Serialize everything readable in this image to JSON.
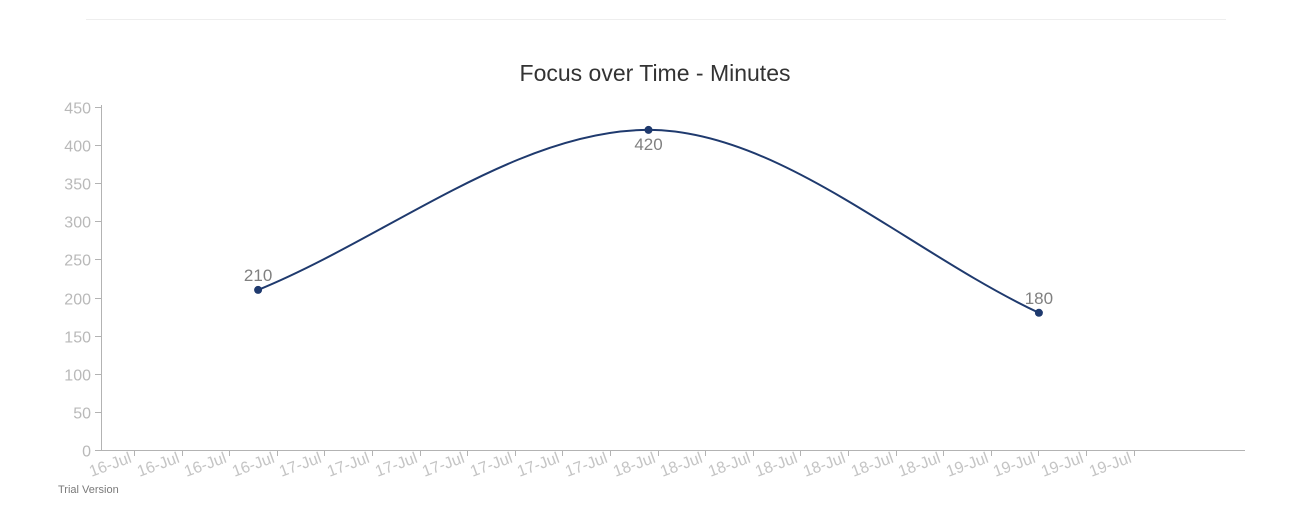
{
  "chart_data": {
    "type": "line",
    "title": "Focus over Time - Minutes",
    "xlabel": "",
    "ylabel": "",
    "ylim": [
      0,
      450
    ],
    "y_ticks": [
      0,
      50,
      100,
      150,
      200,
      250,
      300,
      350,
      400,
      450
    ],
    "x_tick_labels": [
      "16-Jul",
      "16-Jul",
      "16-Jul",
      "16-Jul",
      "17-Jul",
      "17-Jul",
      "17-Jul",
      "17-Jul",
      "17-Jul",
      "17-Jul",
      "17-Jul",
      "18-Jul",
      "18-Jul",
      "18-Jul",
      "18-Jul",
      "18-Jul",
      "18-Jul",
      "18-Jul",
      "19-Jul",
      "19-Jul",
      "19-Jul",
      "19-Jul"
    ],
    "x_range": [
      "16-Jul 00:00",
      "19-Jul 12:00"
    ],
    "series": [
      {
        "points": [
          {
            "x": "16-Jul 12:00",
            "y": 210
          },
          {
            "x": "17-Jul 18:00",
            "y": 420
          },
          {
            "x": "19-Jul 00:00",
            "y": 180
          }
        ],
        "color": "#1f3a6e",
        "smooth": true,
        "show_data_labels": true
      }
    ],
    "grid": false,
    "legend": "none"
  },
  "watermark": "Trial Version",
  "colors": {
    "axis": "#b3b3b3",
    "series": "#1f3a6e",
    "title": "#333333"
  }
}
